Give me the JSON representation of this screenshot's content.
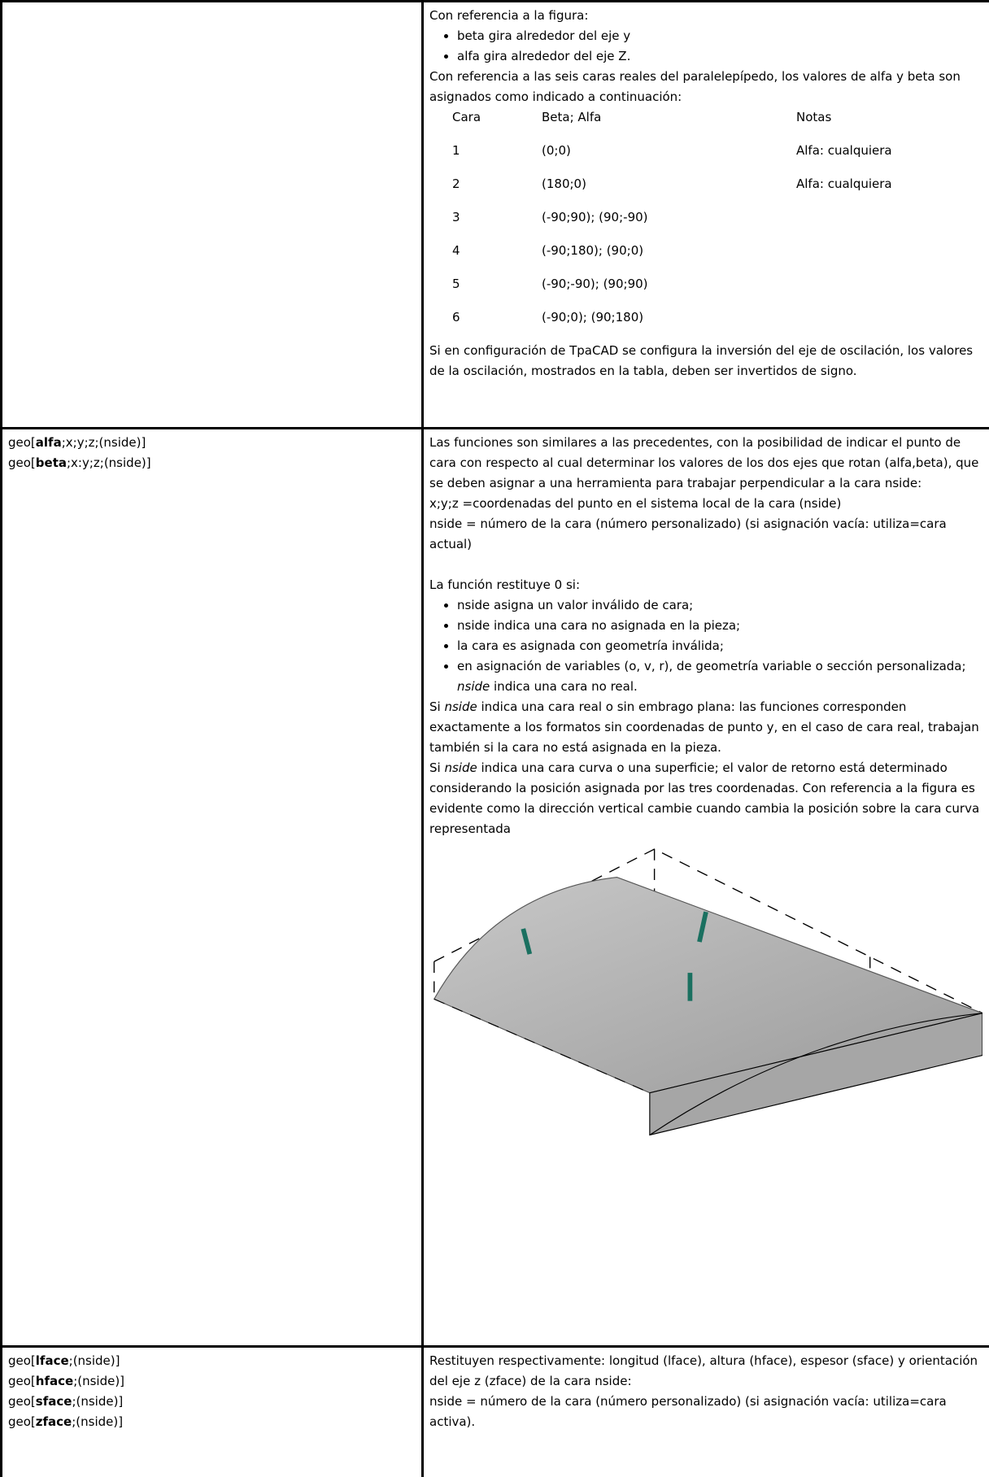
{
  "rows": [
    {
      "right": {
        "intro": "Con referencia a la figura:",
        "bullets": [
          "beta gira alrededor del eje y",
          "alfa gira alrededor del eje Z."
        ],
        "para": "Con referencia a las seis caras reales del paralelepípedo, los valores de alfa y beta son asignados como indicado a continuación:",
        "table": {
          "header": [
            "Cara",
            "Beta; Alfa",
            "Notas"
          ],
          "rows": [
            [
              "1",
              "(0;0)",
              "Alfa: cualquiera"
            ],
            [
              "2",
              "(180;0)",
              "Alfa: cualquiera"
            ],
            [
              "3",
              "(-90;90); (90;-90)"
            ],
            [
              "4",
              "(-90;180); (90;0)"
            ],
            [
              "5",
              "(-90;-90); (90;90)"
            ],
            [
              "6",
              "(-90;0); (90;180)"
            ]
          ]
        },
        "note": "Si en configuración de TpaCAD se configura la inversión del eje de oscilación, los valores de la oscilación, mostrados en la tabla, deben ser invertidos de signo."
      }
    },
    {
      "left": [
        [
          "geo[",
          "alfa",
          ";x;y;z;(nside)]"
        ],
        [
          "geo[",
          "beta",
          ";x:y;z;(nside)]"
        ]
      ],
      "right": {
        "p0": "Las funciones son similares a las precedentes, con la posibilidad de indicar el punto de cara con respecto al cual determinar los valores de los dos ejes que rotan (alfa,beta), que se deben asignar a una herramienta para trabajar perpendicular a la cara nside:",
        "p1": "x;y;z =coordenadas del punto en el sistema local de la cara (nside)",
        "p2": "nside = número de la cara (número personalizado) (si asignación vacía: utiliza=cara actual)",
        "p3": "La función restituye 0 si:",
        "list": [
          "nside asigna un valor inválido de cara;",
          "nside indica una cara no asignada en la pieza;",
          "la cara es asignada con geometría inválida;",
          [
            "en asignación de variables (o, v, r), de geometría variable o sección personalizada; ",
            "nside",
            " indica una cara no real."
          ]
        ],
        "p4": [
          "Si ",
          "nside",
          " indica una cara real o sin embrago plana: las funciones corresponden exactamente a los formatos sin coordenadas de punto y, en el caso de cara real, trabajan también si la cara no está asignada en la pieza."
        ],
        "p5": [
          "Si ",
          "nside",
          " indica una cara curva o una superficie; el valor de retorno está determinado considerando la posición asignada por las tres coordenadas. Con referencia a la figura es evidente como la dirección vertical cambie cuando cambia la posición sobre la cara curva representada"
        ]
      }
    },
    {
      "left": [
        [
          "geo[",
          "lface",
          ";(nside)]"
        ],
        [
          "geo[",
          "hface",
          ";(nside)]"
        ],
        [
          "geo[",
          "sface",
          ";(nside)]"
        ],
        [
          "geo[",
          "zface",
          ";(nside)]"
        ]
      ],
      "right": {
        "p0": "Restituyen respectivamente: longitud (lface), altura (hface), espesor (sface) y orientación del eje z (zface) de la cara nside:",
        "p1": "nside = número de la cara (número personalizado) (si asignación vacía: utiliza=cara activa)."
      }
    }
  ]
}
